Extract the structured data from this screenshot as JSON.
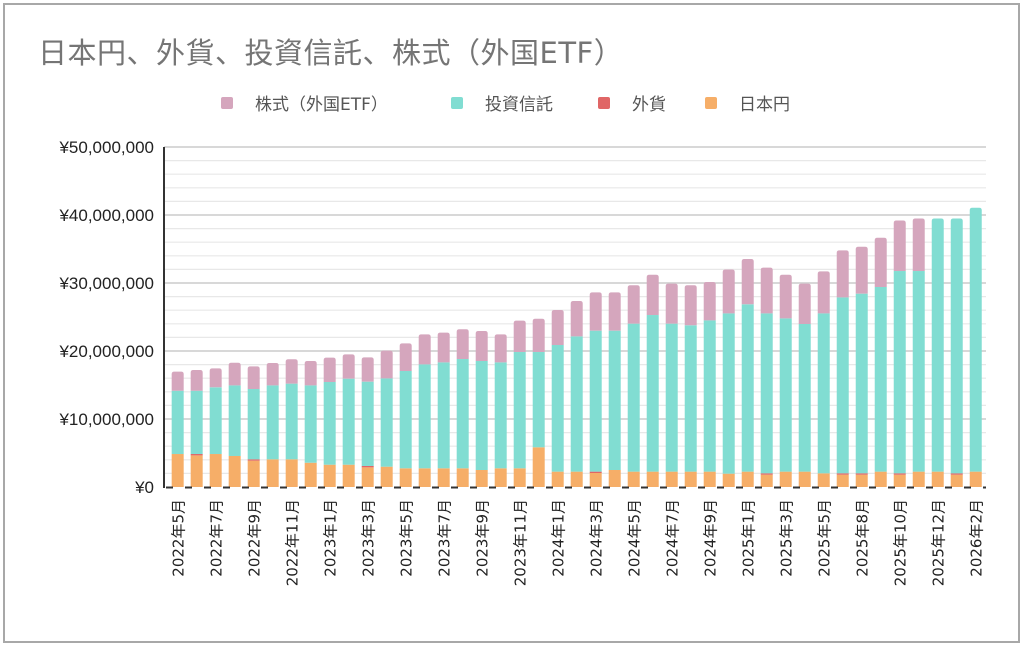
{
  "title": "日本円、外貨、投資信託、株式（外国ETF）",
  "chart_data": {
    "type": "bar",
    "stacked": true,
    "title": "日本円、外貨、投資信託、株式（外国ETF）",
    "xlabel": "",
    "ylabel": "",
    "ylim": [
      0,
      50000000
    ],
    "yticks": [
      0,
      10000000,
      20000000,
      30000000,
      40000000,
      50000000
    ],
    "ytick_labels": [
      "¥0",
      "¥10,000,000",
      "¥20,000,000",
      "¥30,000,000",
      "¥40,000,000",
      "¥50,000,000"
    ],
    "minor_gridline_step": 2000000,
    "grid": true,
    "legend_position": "top",
    "categories": [
      "2022年5月",
      "",
      "2022年7月",
      "",
      "2022年9月",
      "",
      "2022年11月",
      "",
      "2023年1月",
      "",
      "2023年3月",
      "",
      "2023年5月",
      "",
      "2023年7月",
      "",
      "2023年9月",
      "",
      "2023年11月",
      "",
      "2024年1月",
      "",
      "2024年3月",
      "",
      "2024年5月",
      "",
      "2024年7月",
      "",
      "2024年9月",
      "",
      "2025年1月",
      "",
      "2025年3月",
      "",
      "2025年5月",
      "",
      "2025年8月",
      "",
      "2025年10月",
      "",
      "2025年12月",
      "",
      "2026年2月"
    ],
    "series": [
      {
        "name": "日本円",
        "color": "#f6ae68",
        "values": [
          4850000,
          4650000,
          4850000,
          4560000,
          3870000,
          4070000,
          4070000,
          3570000,
          3280000,
          3280000,
          2890000,
          2990000,
          2750000,
          2750000,
          2750000,
          2750000,
          2500000,
          2750000,
          2750000,
          5840000,
          2260000,
          2260000,
          2060000,
          2500000,
          2260000,
          2260000,
          2260000,
          2260000,
          2260000,
          1960000,
          2260000,
          1810000,
          2260000,
          2260000,
          2010000,
          1810000,
          1810000,
          2260000,
          1810000,
          2260000,
          2260000,
          1810000,
          2260000
        ]
      },
      {
        "name": "外貨",
        "color": "#e06666",
        "values": [
          0,
          200000,
          0,
          0,
          200000,
          0,
          0,
          0,
          0,
          0,
          200000,
          0,
          0,
          0,
          0,
          0,
          0,
          0,
          0,
          0,
          0,
          0,
          200000,
          0,
          0,
          0,
          0,
          0,
          0,
          0,
          0,
          200000,
          0,
          0,
          0,
          200000,
          200000,
          0,
          200000,
          0,
          0,
          200000,
          0
        ]
      },
      {
        "name": "投資信託",
        "color": "#81ddd2",
        "values": [
          9310000,
          9310000,
          9810000,
          10390000,
          10340000,
          10880000,
          11130000,
          11380000,
          12160000,
          12650000,
          12400000,
          12990000,
          14310000,
          15290000,
          15580000,
          16070000,
          16030000,
          15580000,
          17100000,
          14010000,
          18620000,
          19890000,
          20730000,
          20490000,
          21760000,
          23030000,
          21760000,
          21520000,
          22250000,
          23580000,
          24610000,
          23530000,
          22540000,
          21710000,
          23530000,
          25880000,
          26420000,
          27150000,
          29750000,
          29500000,
          37230000,
          37480000,
          38810000
        ]
      },
      {
        "name": "株式（外国ETF）",
        "color": "#d5a6bd",
        "values": [
          2800000,
          3040000,
          2790000,
          3330000,
          3330000,
          3290000,
          3580000,
          3580000,
          3580000,
          3570000,
          3580000,
          4070000,
          4070000,
          4410000,
          4370000,
          4370000,
          4410000,
          4120000,
          4610000,
          4900000,
          5150000,
          5200000,
          5640000,
          5640000,
          5640000,
          5930000,
          5880000,
          5880000,
          5640000,
          6440000,
          6660000,
          6720000,
          6420000,
          5930000,
          6170000,
          6910000,
          6910000,
          7250000,
          7440000,
          7730000,
          0,
          0,
          0
        ]
      }
    ]
  },
  "legend": [
    {
      "label": "株式（外国ETF）",
      "color": "#d5a6bd"
    },
    {
      "label": "投資信託",
      "color": "#81ddd2"
    },
    {
      "label": "外貨",
      "color": "#e06666"
    },
    {
      "label": "日本円",
      "color": "#f6ae68"
    }
  ]
}
